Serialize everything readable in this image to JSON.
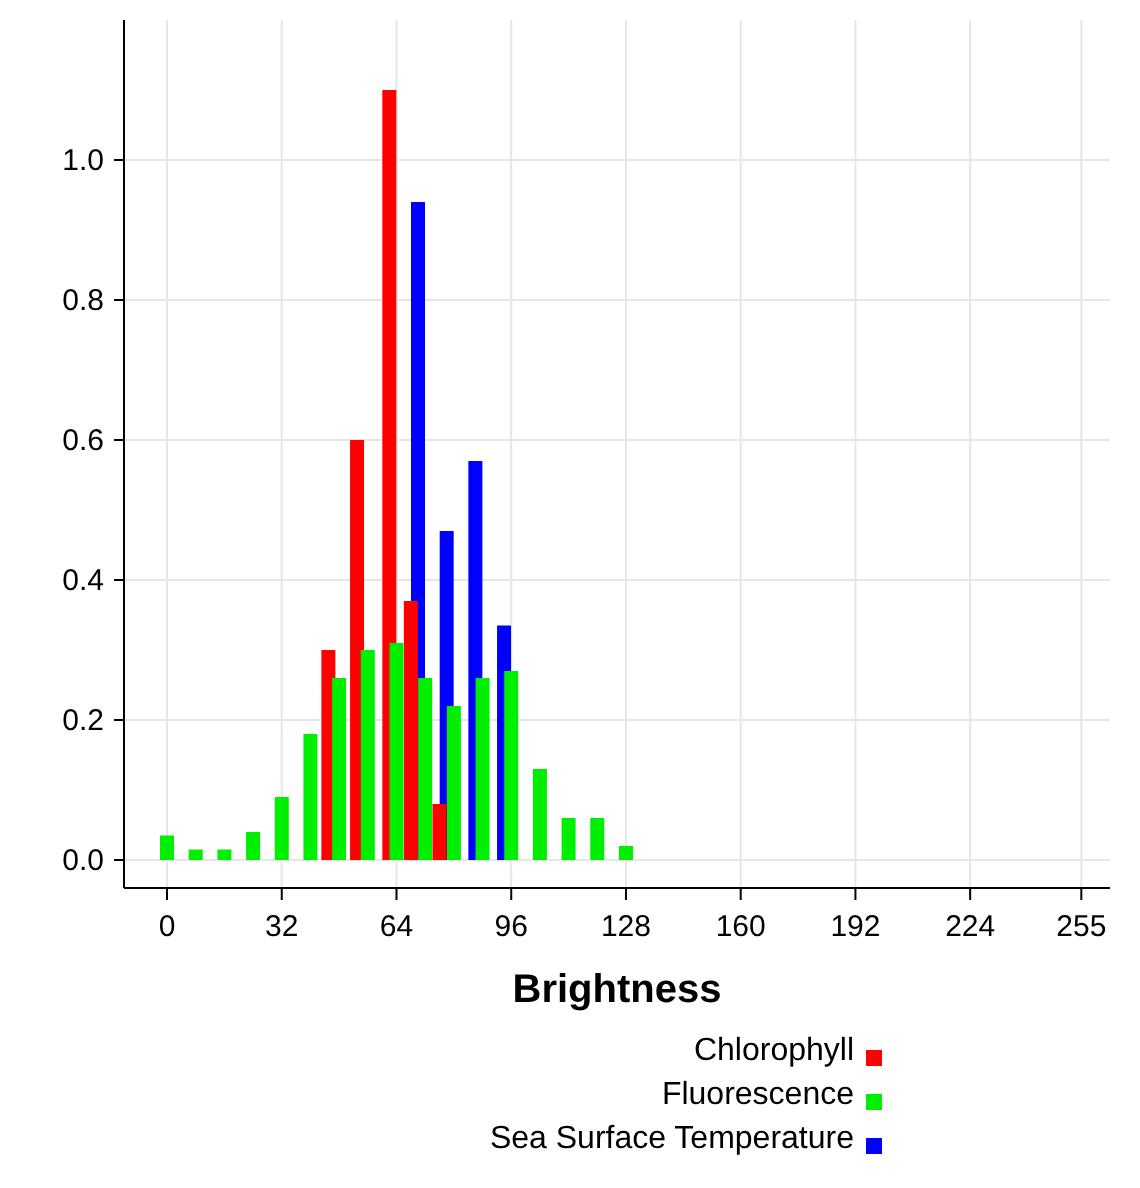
{
  "chart_data": {
    "type": "bar",
    "xlabel": "Brightness",
    "xlim": [
      -12,
      263
    ],
    "xticks": [
      0,
      32,
      64,
      96,
      128,
      160,
      192,
      224,
      255
    ],
    "ylim": [
      -0.04,
      1.2
    ],
    "yticks": [
      {
        "value": 0,
        "label": "0.0"
      },
      {
        "value": 0.2,
        "label": "0.2"
      },
      {
        "value": 0.4,
        "label": "0.4"
      },
      {
        "value": 0.6,
        "label": "0.6"
      },
      {
        "value": 0.8,
        "label": "0.8"
      },
      {
        "value": 1,
        "label": "1.0"
      }
    ],
    "grid": true,
    "legend": "bottom",
    "series": [
      {
        "name": "Chlorophyll",
        "color": "#ff0000",
        "x": [
          45,
          53,
          62,
          68,
          76
        ],
        "values": [
          0.3,
          0.6,
          1.1,
          0.37,
          0.08
        ]
      },
      {
        "name": "Fluorescence",
        "color": "#00ee00",
        "x": [
          0,
          8,
          16,
          24,
          32,
          40,
          48,
          56,
          64,
          72,
          80,
          88,
          96,
          104,
          112,
          120,
          128
        ],
        "values": [
          0.035,
          0.015,
          0.015,
          0.04,
          0.09,
          0.18,
          0.26,
          0.3,
          0.31,
          0.26,
          0.22,
          0.26,
          0.27,
          0.13,
          0.06,
          0.06,
          0.02
        ]
      },
      {
        "name": "Sea Surface Temperature",
        "color": "#0000ff",
        "x": [
          70,
          78,
          86,
          94
        ],
        "values": [
          0.94,
          0.47,
          0.57,
          0.335
        ]
      }
    ]
  }
}
